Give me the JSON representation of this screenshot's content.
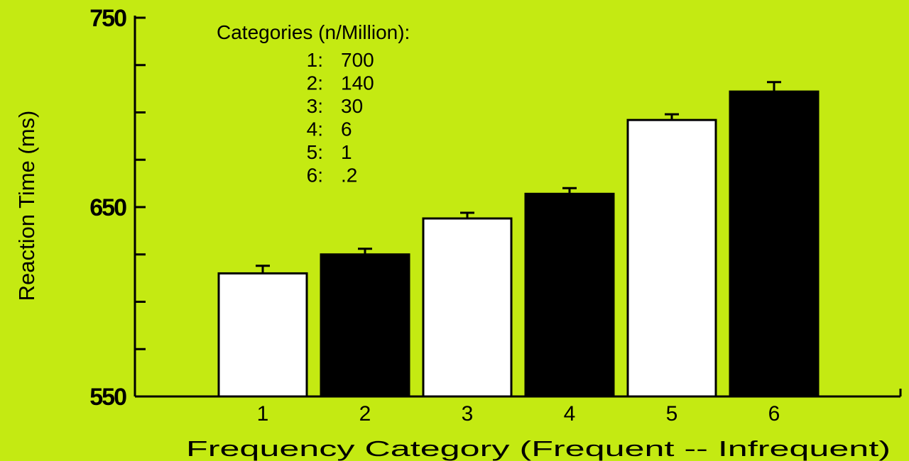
{
  "chart_data": {
    "type": "bar",
    "categories": [
      "1",
      "2",
      "3",
      "4",
      "5",
      "6"
    ],
    "values": [
      615,
      625,
      644,
      657,
      696,
      711
    ],
    "errors": [
      4,
      3,
      3,
      3,
      3,
      5
    ],
    "bar_colors": [
      "#ffffff",
      "#000000",
      "#ffffff",
      "#000000",
      "#ffffff",
      "#000000"
    ],
    "xlabel": "Frequency Category (Frequent -- Infrequent)",
    "ylabel": "Reaction Time (ms)",
    "ylim": [
      550,
      750
    ],
    "yticks": [
      {
        "value": 550,
        "label": "550"
      },
      {
        "value": 575,
        "label": ""
      },
      {
        "value": 600,
        "label": ""
      },
      {
        "value": 625,
        "label": ""
      },
      {
        "value": 650,
        "label": "650"
      },
      {
        "value": 675,
        "label": ""
      },
      {
        "value": 700,
        "label": ""
      },
      {
        "value": 725,
        "label": ""
      },
      {
        "value": 750,
        "label": "750"
      }
    ],
    "legend_title": "Categories (n/Million):",
    "legend_items": [
      {
        "key": "1:",
        "value": "700"
      },
      {
        "key": "2:",
        "value": "140"
      },
      {
        "key": "3:",
        "value": "30"
      },
      {
        "key": "4:",
        "value": "6"
      },
      {
        "key": "5:",
        "value": "1"
      },
      {
        "key": "6:",
        "value": ".2"
      }
    ],
    "legend_position": "top-left",
    "grid": false
  },
  "colors": {
    "background": "#c4ea12",
    "ink": "#000000"
  }
}
